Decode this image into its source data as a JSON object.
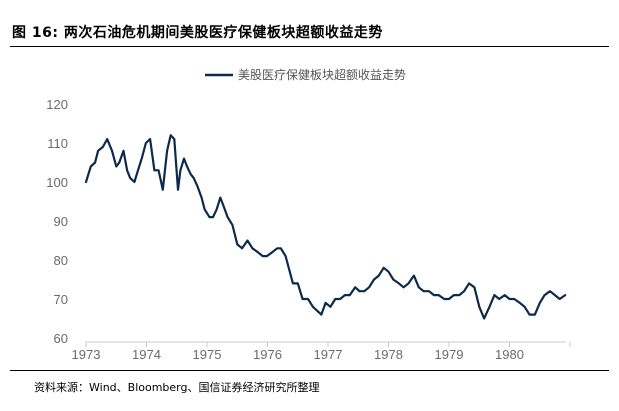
{
  "figure": {
    "title": "图 16: 两次石油危机期间美股医疗保健板块超额收益走势",
    "source": "资料来源：Wind、Bloomberg、国信证券经济研究所整理"
  },
  "chart_data": {
    "type": "line",
    "title": "",
    "xlabel": "",
    "ylabel": "",
    "xlim": [
      1973.0,
      1981.0
    ],
    "ylim": [
      60,
      120
    ],
    "x_ticks": [
      "1973",
      "1974",
      "1975",
      "1976",
      "1977",
      "1978",
      "1979",
      "1980"
    ],
    "y_ticks": [
      "60",
      "70",
      "80",
      "90",
      "100",
      "110",
      "120"
    ],
    "legend_position": "top-center",
    "grid": false,
    "series": [
      {
        "name": "美股医疗保健板块超额收益走势",
        "color": "#0d2a4a",
        "x": [
          1973.0,
          1973.08,
          1973.15,
          1973.2,
          1973.28,
          1973.35,
          1973.43,
          1973.5,
          1973.55,
          1973.62,
          1973.68,
          1973.73,
          1973.8,
          1973.86,
          1973.92,
          1973.99,
          1974.06,
          1974.13,
          1974.2,
          1974.27,
          1974.34,
          1974.4,
          1974.46,
          1974.52,
          1974.56,
          1974.62,
          1974.67,
          1974.73,
          1974.78,
          1974.84,
          1974.91,
          1974.96,
          1975.04,
          1975.1,
          1975.16,
          1975.22,
          1975.27,
          1975.34,
          1975.42,
          1975.5,
          1975.58,
          1975.67,
          1975.75,
          1975.84,
          1975.92,
          1975.99,
          1976.08,
          1976.16,
          1976.22,
          1976.3,
          1976.42,
          1976.5,
          1976.58,
          1976.67,
          1976.75,
          1976.82,
          1976.89,
          1976.96,
          1977.04,
          1977.12,
          1977.2,
          1977.28,
          1977.36,
          1977.45,
          1977.52,
          1977.6,
          1977.68,
          1977.76,
          1977.84,
          1977.92,
          1978.0,
          1978.08,
          1978.17,
          1978.25,
          1978.33,
          1978.42,
          1978.5,
          1978.58,
          1978.67,
          1978.75,
          1978.83,
          1978.92,
          1979.0,
          1979.08,
          1979.17,
          1979.25,
          1979.33,
          1979.42,
          1979.5,
          1979.58,
          1979.67,
          1979.75,
          1979.83,
          1979.92,
          1980.0,
          1980.08,
          1980.17,
          1980.25,
          1980.33,
          1980.42,
          1980.5,
          1980.58,
          1980.67,
          1980.75,
          1980.83,
          1980.92
        ],
        "y": [
          100,
          104,
          105,
          108,
          109,
          111,
          108,
          104,
          105,
          108,
          103,
          101,
          100,
          103,
          106,
          110,
          111,
          103,
          103,
          98,
          108,
          112,
          111,
          98,
          103,
          106,
          104,
          102,
          101,
          99,
          96,
          93,
          91,
          91,
          93,
          96,
          94,
          91,
          89,
          84,
          83,
          85,
          83,
          82,
          81,
          81,
          82,
          83,
          83,
          81,
          74,
          74,
          70,
          70,
          68,
          67,
          66,
          69,
          68,
          70,
          70,
          71,
          71,
          73,
          72,
          72,
          73,
          75,
          76,
          78,
          77,
          75,
          74,
          73,
          74,
          76,
          73,
          72,
          72,
          71,
          71,
          70,
          70,
          71,
          71,
          72,
          74,
          73,
          68,
          65,
          68,
          71,
          70,
          71,
          70,
          70,
          69,
          68,
          66,
          66,
          69,
          71,
          72,
          71,
          70,
          71
        ]
      }
    ]
  }
}
